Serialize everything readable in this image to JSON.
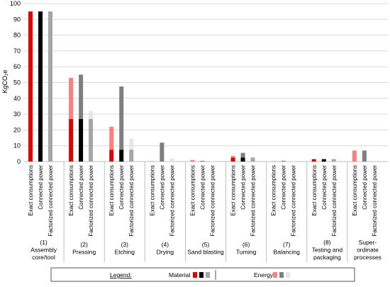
{
  "chart_data": {
    "type": "bar",
    "ylabel": "KgCO₂e",
    "ylim": [
      0,
      100
    ],
    "yticks": [
      0,
      10,
      20,
      30,
      40,
      50,
      60,
      70,
      80,
      90,
      100
    ],
    "bar_labels": [
      "Exact consumptions",
      "Connected power",
      "Factorized connected power"
    ],
    "groups": [
      {
        "number": "(1)",
        "name": "Assembly core/tool",
        "name_lines": [
          "Assembly",
          "core/tool"
        ],
        "material": [
          95,
          95,
          95
        ],
        "energy": [
          0,
          0,
          0
        ]
      },
      {
        "number": "(2)",
        "name": "Pressing",
        "name_lines": [
          "Pressing"
        ],
        "material": [
          27,
          27,
          27
        ],
        "energy": [
          26,
          28,
          5
        ]
      },
      {
        "number": "(3)",
        "name": "Etching",
        "name_lines": [
          "Etching"
        ],
        "material": [
          7.5,
          7.5,
          7.5
        ],
        "energy": [
          14.5,
          40,
          7
        ]
      },
      {
        "number": "(4)",
        "name": "Drying",
        "name_lines": [
          "Drying"
        ],
        "material": [
          0,
          0,
          0
        ],
        "energy": [
          0.3,
          12,
          2
        ]
      },
      {
        "number": "(5)",
        "name": "Sand blasting",
        "name_lines": [
          "Sand blasting"
        ],
        "material": [
          0,
          0,
          0
        ],
        "energy": [
          1,
          0.5,
          0.3
        ]
      },
      {
        "number": "(6)",
        "name": "Turning",
        "name_lines": [
          "Turning"
        ],
        "material": [
          2.5,
          2.5,
          2.5
        ],
        "energy": [
          1,
          3,
          0.5
        ]
      },
      {
        "number": "(7)",
        "name": "Balancing",
        "name_lines": [
          "Balancing"
        ],
        "material": [
          0,
          0,
          0
        ],
        "energy": [
          0.3,
          0.5,
          0.3
        ]
      },
      {
        "number": "(8)",
        "name": "Testing and packaging",
        "name_lines": [
          "Testing and",
          "packaging"
        ],
        "material": [
          1.5,
          1.5,
          1.5
        ],
        "energy": [
          0.2,
          0.2,
          0.3
        ]
      },
      {
        "number": "",
        "name": "Super-ordinate processes",
        "name_lines": [
          "Super-",
          "ordinate",
          "processes"
        ],
        "material": [
          0,
          0,
          0
        ],
        "energy": [
          7,
          7,
          0.5
        ]
      }
    ],
    "legend": {
      "title": "Legend:",
      "material_label": "Material",
      "energy_label": "Energy"
    },
    "colors": {
      "material": [
        "#e00000",
        "#000000",
        "#a6a6a6"
      ],
      "energy": [
        "#ff7f7f",
        "#7f7f7f",
        "#e6e6e6"
      ],
      "axis": "#bfbfbf",
      "grid": "#d9d9d9"
    }
  }
}
